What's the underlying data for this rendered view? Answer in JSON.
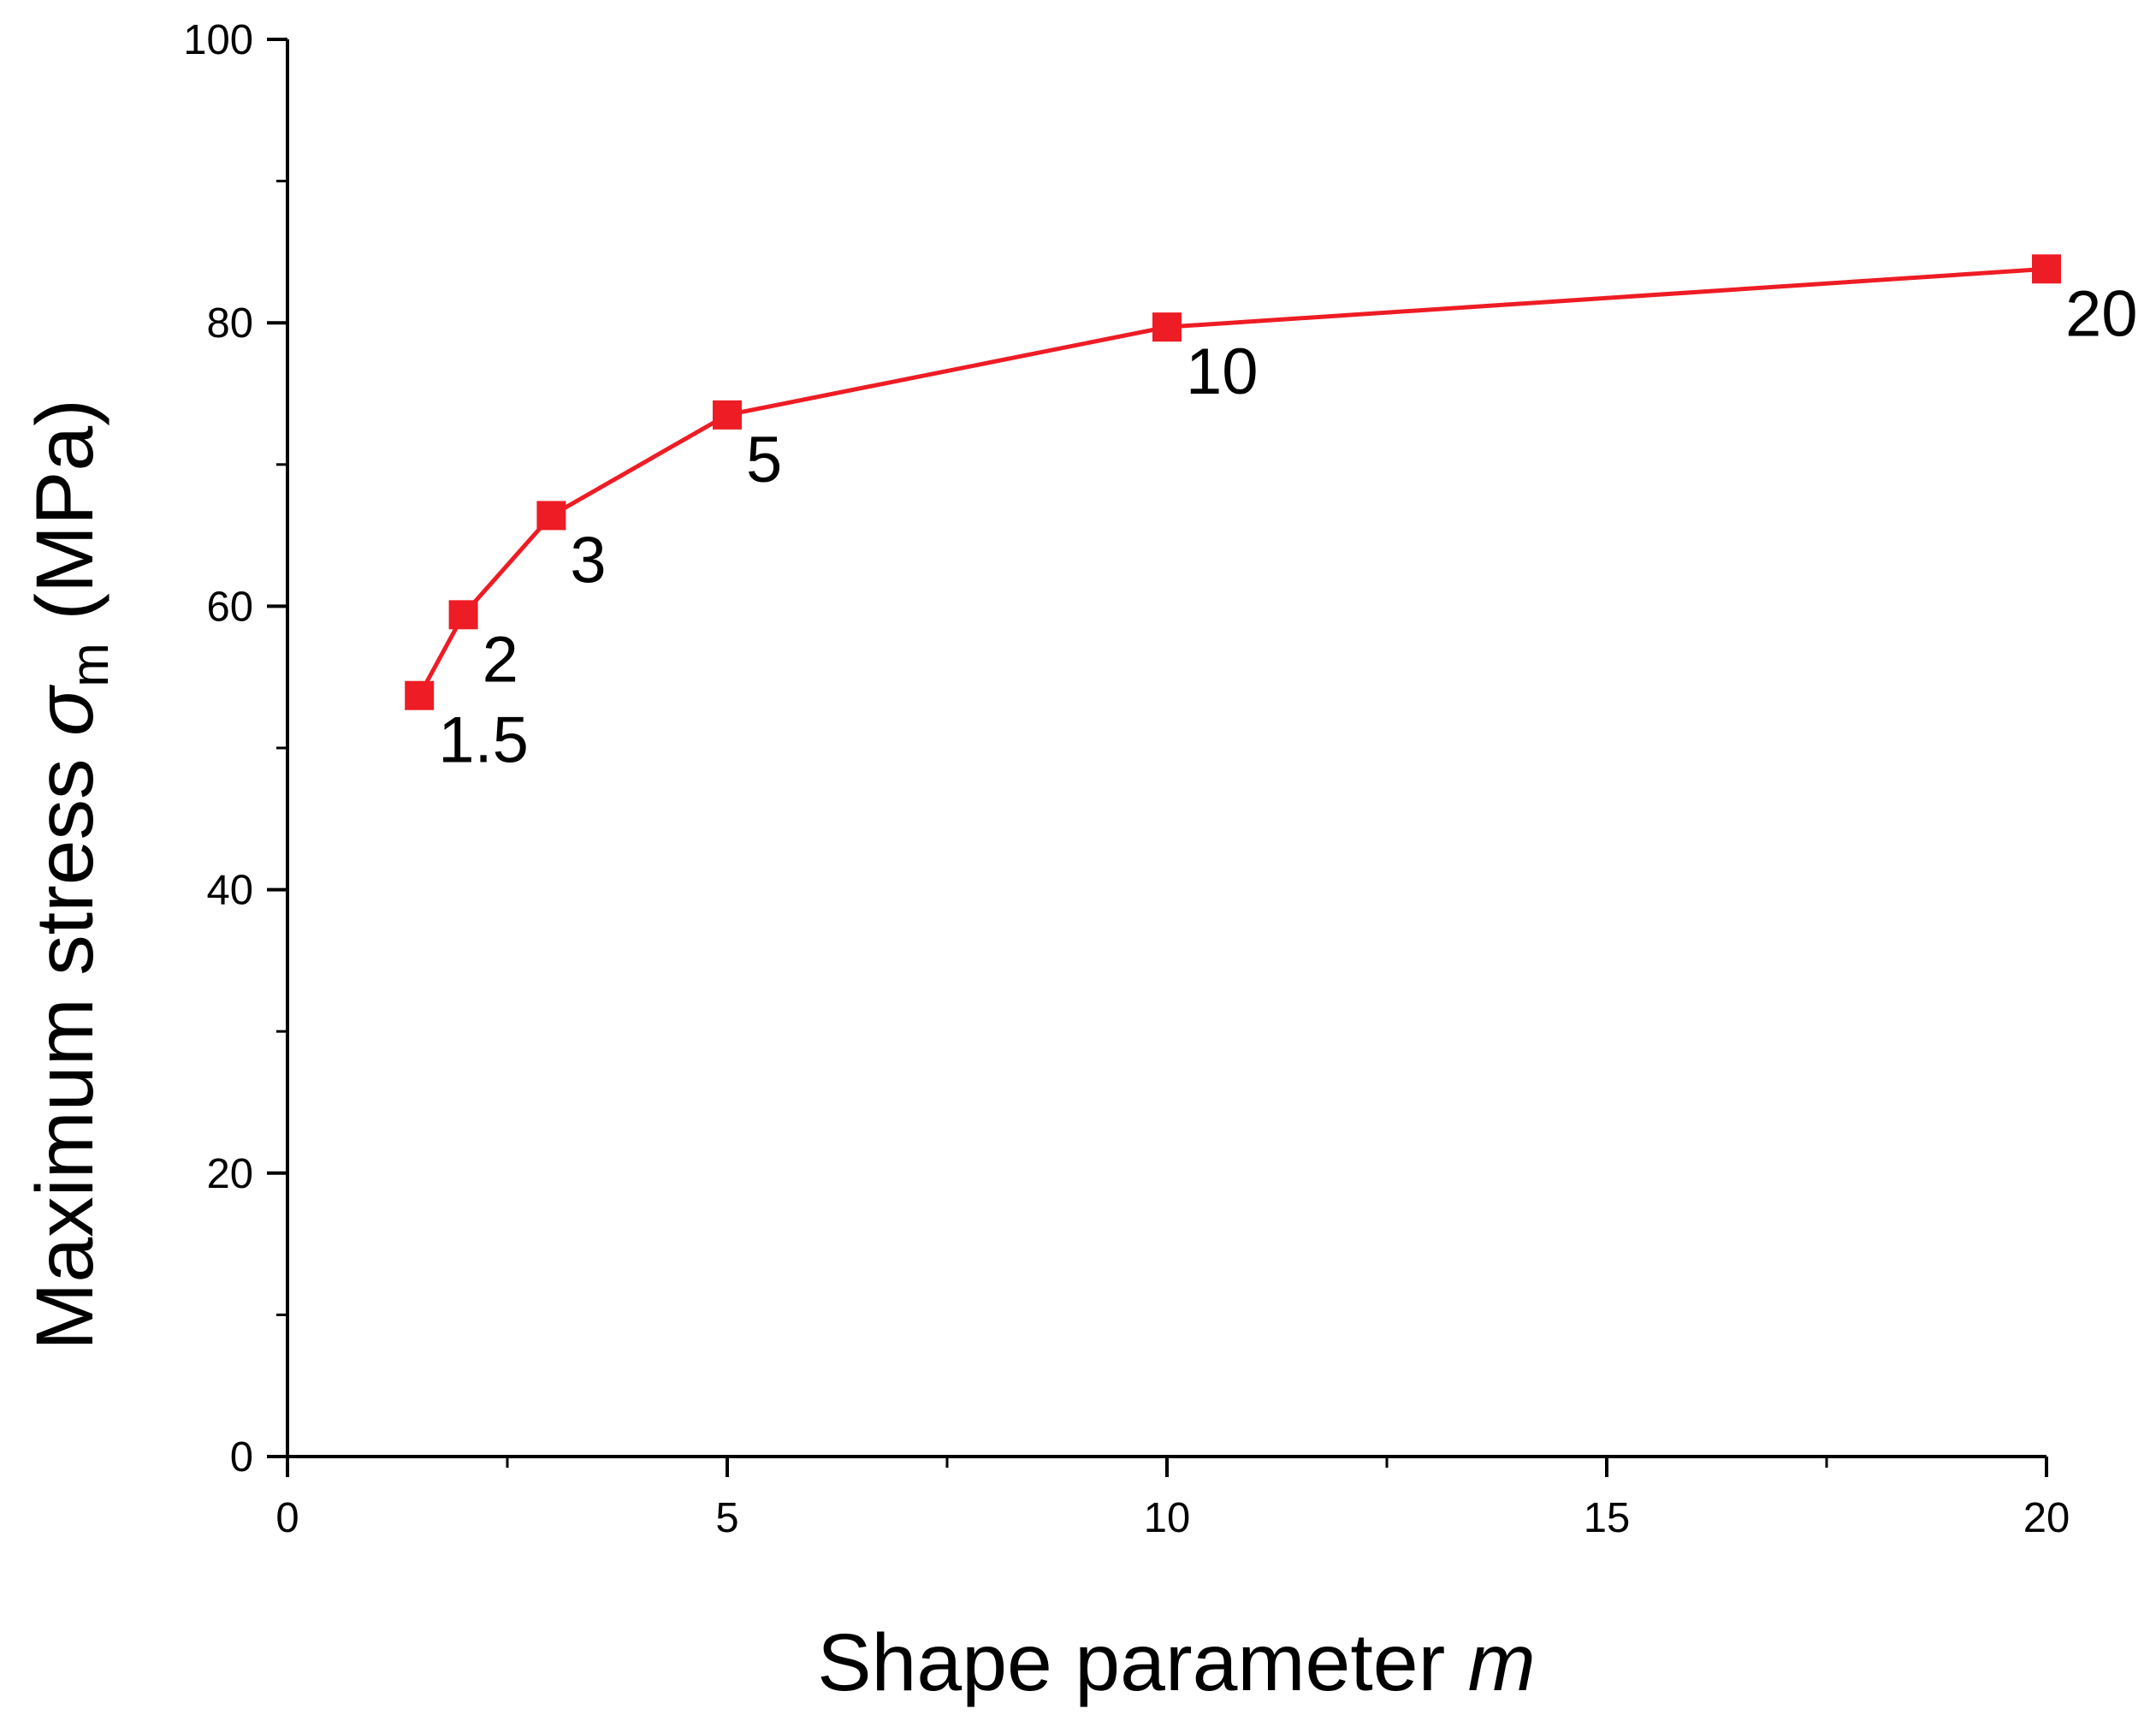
{
  "chart_data": {
    "type": "line",
    "xlabel": "Shape parameter",
    "xlabel_var": "m",
    "ylabel": "Maximum stress",
    "ylabel_var": "σ",
    "ylabel_sub": "m",
    "ylabel_unit": "(MPa)",
    "xlim": [
      0,
      20
    ],
    "ylim": [
      0,
      100
    ],
    "x_ticks": [
      0,
      5,
      10,
      15,
      20
    ],
    "x_tick_labels": [
      "0",
      "5",
      "10",
      "15",
      "20"
    ],
    "y_ticks": [
      0,
      20,
      40,
      60,
      80,
      100
    ],
    "y_tick_labels": [
      "0",
      "20",
      "40",
      "60",
      "80",
      "100"
    ],
    "grid": false,
    "series": [
      {
        "color": "#ee1c24",
        "marker": "square",
        "x": [
          1.5,
          2,
          3,
          5,
          10,
          20
        ],
        "y": [
          53.7,
          59.4,
          66.4,
          73.5,
          79.7,
          83.8
        ],
        "point_labels": [
          "1.5",
          "2",
          "3",
          "5",
          "10",
          "20"
        ]
      }
    ]
  }
}
